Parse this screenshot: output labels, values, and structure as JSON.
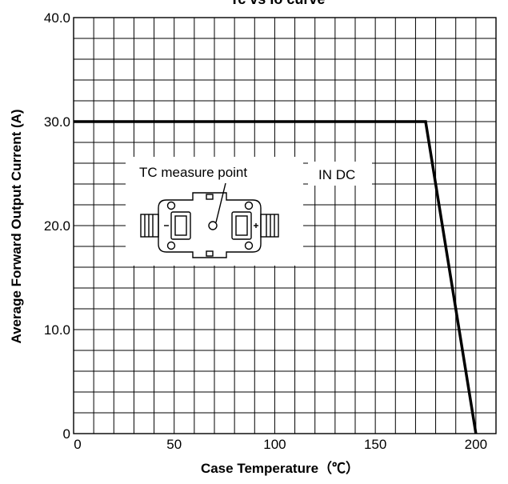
{
  "chart_data": {
    "type": "line",
    "title": "Tc vs Io curve",
    "xlabel": "Case Temperature（℃）",
    "ylabel": "Average Forward Output Current (A)",
    "xlim": [
      0,
      210
    ],
    "ylim": [
      0,
      40
    ],
    "x_ticks": [
      "0",
      "50",
      "100",
      "150",
      "200"
    ],
    "y_ticks": [
      "0",
      "10.0",
      "20.0",
      "30.0",
      "40.0"
    ],
    "grid": true,
    "series": [
      {
        "x": [
          0,
          175,
          200
        ],
        "y": [
          30,
          30,
          0
        ]
      }
    ],
    "annotations": {
      "series_label": "IN DC",
      "inset_label": "TC measure point"
    },
    "colors": {
      "line": "#000000",
      "grid": "#000000",
      "background": "#ffffff"
    }
  }
}
